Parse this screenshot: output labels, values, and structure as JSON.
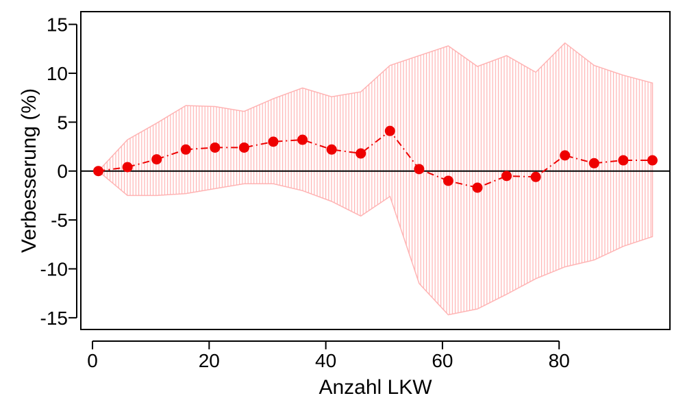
{
  "chart_data": {
    "type": "line",
    "xlabel": "Anzahl LKW",
    "ylabel": "Verbesserung (%)",
    "xlim": [
      -2,
      99
    ],
    "ylim": [
      -16.2,
      16.3
    ],
    "x_ticks": [
      0,
      20,
      40,
      60,
      80
    ],
    "y_ticks": [
      -15,
      -10,
      -5,
      0,
      5,
      10,
      15
    ],
    "reference_line_y": 0,
    "x": [
      1,
      6,
      11,
      16,
      21,
      26,
      31,
      36,
      41,
      46,
      51,
      56,
      61,
      66,
      71,
      76,
      81,
      86,
      91,
      96
    ],
    "series": [
      {
        "values": [
          0.0,
          0.4,
          1.2,
          2.2,
          2.4,
          2.4,
          3.0,
          3.2,
          2.2,
          1.8,
          4.1,
          0.2,
          -1.0,
          -1.7,
          -0.5,
          -0.6,
          1.6,
          0.8,
          1.1,
          1.1
        ],
        "upper": [
          0.0,
          3.2,
          4.9,
          6.7,
          6.6,
          6.1,
          7.4,
          8.5,
          7.6,
          8.1,
          10.8,
          11.8,
          12.8,
          10.7,
          11.8,
          10.1,
          13.1,
          10.8,
          9.8,
          9.0
        ],
        "lower": [
          0.0,
          -2.5,
          -2.5,
          -2.3,
          -1.8,
          -1.3,
          -1.3,
          -2.0,
          -3.1,
          -4.6,
          -2.6,
          -11.5,
          -14.7,
          -14.1,
          -12.6,
          -11.0,
          -9.8,
          -9.1,
          -7.7,
          -6.7
        ]
      }
    ],
    "colors": {
      "points": "#ee0000",
      "line": "#ee0000",
      "band_fill": "#ffb3b3",
      "zero_line": "#000000",
      "frame": "#000000"
    }
  }
}
